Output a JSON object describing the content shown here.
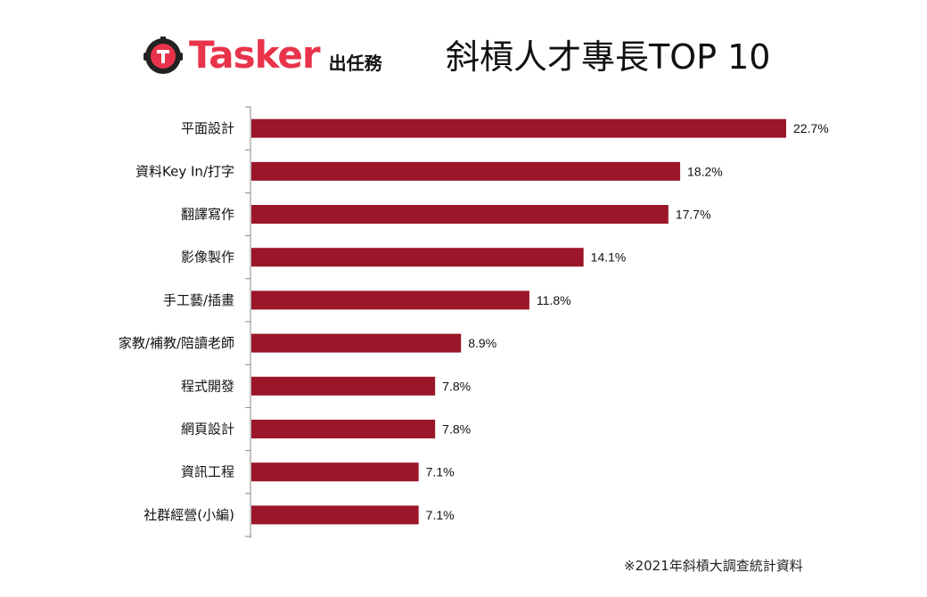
{
  "brand": {
    "name": "Tasker",
    "sub": "出任務",
    "accent": "#e8334a"
  },
  "footnote": "※2021年斜槓大調查統計資料",
  "chart_data": {
    "type": "bar",
    "orientation": "horizontal",
    "title": "斜槓人才專長TOP 10",
    "categories": [
      "平面設計",
      "資料Key In/打字",
      "翻譯寫作",
      "影像製作",
      "手工藝/插畫",
      "家教/補教/陪讀老師",
      "程式開發",
      "網頁設計",
      "資訊工程",
      "社群經營(小編)"
    ],
    "values": [
      22.7,
      18.2,
      17.7,
      14.1,
      11.8,
      8.9,
      7.8,
      7.8,
      7.1,
      7.1
    ],
    "value_labels": [
      "22.7%",
      "18.2%",
      "17.7%",
      "14.1%",
      "11.8%",
      "8.9%",
      "7.8%",
      "7.8%",
      "7.1%",
      "7.1%"
    ],
    "unit": "%",
    "bar_color": "#9b1628",
    "xlim": [
      0,
      22.7
    ],
    "grid": false,
    "legend": "none"
  }
}
